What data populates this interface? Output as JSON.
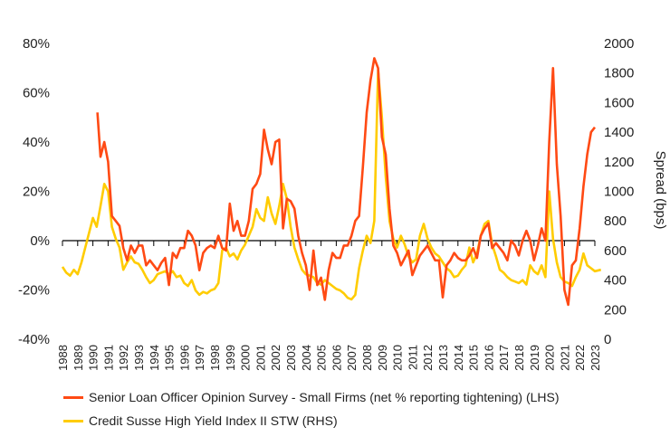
{
  "chart_data": {
    "type": "line",
    "xlabel": "",
    "ylabel_left": "",
    "ylabel_right": "Spread (bps)",
    "ylim_left": [
      -40,
      80
    ],
    "ylim_right": [
      0,
      2000
    ],
    "left_ticks": [
      "80%",
      "60%",
      "40%",
      "20%",
      "0%",
      "-20%",
      "-40%"
    ],
    "left_tick_values": [
      80,
      60,
      40,
      20,
      0,
      -20,
      -40
    ],
    "right_ticks": [
      "2000",
      "1800",
      "1600",
      "1400",
      "1200",
      "1000",
      "800",
      "600",
      "400",
      "200",
      "0"
    ],
    "right_tick_values": [
      2000,
      1800,
      1600,
      1400,
      1200,
      1000,
      800,
      600,
      400,
      200,
      0
    ],
    "x_ticks": [
      "1988",
      "1989",
      "1990",
      "1991",
      "1992",
      "1993",
      "1994",
      "1995",
      "1996",
      "1997",
      "1998",
      "1999",
      "2000",
      "2001",
      "2002",
      "2003",
      "2004",
      "2005",
      "2006",
      "2007",
      "2008",
      "2009",
      "2010",
      "2011",
      "2012",
      "2013",
      "2014",
      "2015",
      "2016",
      "2017",
      "2018",
      "2019",
      "2020",
      "2021",
      "2022",
      "2023"
    ],
    "grid": false,
    "legend_position": "bottom",
    "series": [
      {
        "name": "Senior Loan Officer Opinion Survey - Small Firms (net % reporting tightening) (LHS)",
        "axis": "left",
        "color": "#FF4A14",
        "x": [
          1990.3,
          1990.5,
          1990.75,
          1991,
          1991.25,
          1991.5,
          1991.75,
          1992,
          1992.25,
          1992.5,
          1992.75,
          1993,
          1993.25,
          1993.5,
          1993.75,
          1994,
          1994.25,
          1994.5,
          1994.75,
          1995,
          1995.25,
          1995.5,
          1995.75,
          1996,
          1996.25,
          1996.5,
          1996.75,
          1997,
          1997.25,
          1997.5,
          1997.75,
          1998,
          1998.25,
          1998.5,
          1998.75,
          1999,
          1999.25,
          1999.5,
          1999.75,
          2000,
          2000.25,
          2000.5,
          2000.75,
          2001,
          2001.25,
          2001.5,
          2001.75,
          2002,
          2002.25,
          2002.5,
          2002.75,
          2003,
          2003.25,
          2003.5,
          2003.75,
          2004,
          2004.25,
          2004.5,
          2004.75,
          2005,
          2005.25,
          2005.5,
          2005.75,
          2006,
          2006.25,
          2006.5,
          2006.75,
          2007,
          2007.25,
          2007.5,
          2007.75,
          2008,
          2008.25,
          2008.5,
          2008.75,
          2009,
          2009.25,
          2009.5,
          2009.75,
          2010,
          2010.25,
          2010.5,
          2010.75,
          2011,
          2011.25,
          2011.5,
          2011.75,
          2012,
          2012.25,
          2012.5,
          2012.75,
          2013,
          2013.25,
          2013.5,
          2013.75,
          2014,
          2014.25,
          2014.5,
          2014.75,
          2015,
          2015.25,
          2015.5,
          2015.75,
          2016,
          2016.25,
          2016.5,
          2016.75,
          2017,
          2017.25,
          2017.5,
          2017.75,
          2018,
          2018.25,
          2018.5,
          2018.75,
          2019,
          2019.25,
          2019.5,
          2019.75,
          2020,
          2020.25,
          2020.5,
          2020.75,
          2021,
          2021.25,
          2021.5,
          2021.75,
          2022,
          2022.25,
          2022.5,
          2022.75,
          2023
        ],
        "y": [
          52,
          34,
          40,
          32,
          10,
          8,
          6,
          -3,
          -8,
          -2,
          -5,
          -2,
          -2,
          -10,
          -8,
          -10,
          -12,
          -9,
          -7,
          -18,
          -5,
          -7,
          -3,
          -3,
          4,
          2,
          -2,
          -12,
          -5,
          -3,
          -2,
          -3,
          2,
          -3,
          -4,
          15,
          4,
          8,
          2,
          2,
          8,
          21,
          23,
          27,
          45,
          37,
          31,
          40,
          41,
          5,
          17,
          16,
          13,
          2,
          -5,
          -10,
          -20,
          -4,
          -18,
          -15,
          -24,
          -12,
          -5,
          -7,
          -7,
          -2,
          -2,
          2,
          8,
          10,
          30,
          52,
          65,
          74,
          70,
          42,
          35,
          13,
          -2,
          -5,
          -10,
          -7,
          -4,
          -14,
          -10,
          -6,
          -4,
          -2,
          -5,
          -8,
          -8,
          -23,
          -10,
          -8,
          -5,
          -7,
          -8,
          -8,
          -6,
          -3,
          -7,
          2,
          5,
          7,
          -3,
          -1,
          -3,
          -5,
          -8,
          0,
          -2,
          -6,
          0,
          4,
          0,
          -8,
          -2,
          5,
          0,
          40,
          70,
          31,
          10,
          -20,
          -26,
          -10,
          -8,
          5,
          22,
          35,
          44,
          46
        ]
      },
      {
        "name": "Credit Susse High Yield Index II STW (RHS)",
        "axis": "right",
        "color": "#FFCC00",
        "x": [
          1988,
          1988.25,
          1988.5,
          1988.75,
          1989,
          1989.25,
          1989.5,
          1989.75,
          1990,
          1990.25,
          1990.5,
          1990.75,
          1991,
          1991.25,
          1991.5,
          1991.75,
          1992,
          1992.25,
          1992.5,
          1992.75,
          1993,
          1993.25,
          1993.5,
          1993.75,
          1994,
          1994.25,
          1994.5,
          1994.75,
          1995,
          1995.25,
          1995.5,
          1995.75,
          1996,
          1996.25,
          1996.5,
          1996.75,
          1997,
          1997.25,
          1997.5,
          1997.75,
          1998,
          1998.25,
          1998.5,
          1998.75,
          1999,
          1999.25,
          1999.5,
          1999.75,
          2000,
          2000.25,
          2000.5,
          2000.75,
          2001,
          2001.25,
          2001.5,
          2001.75,
          2002,
          2002.25,
          2002.5,
          2002.75,
          2003,
          2003.25,
          2003.5,
          2003.75,
          2004,
          2004.25,
          2004.5,
          2004.75,
          2005,
          2005.25,
          2005.5,
          2005.75,
          2006,
          2006.25,
          2006.5,
          2006.75,
          2007,
          2007.25,
          2007.5,
          2007.75,
          2008,
          2008.25,
          2008.5,
          2008.75,
          2009,
          2009.25,
          2009.5,
          2009.75,
          2010,
          2010.25,
          2010.5,
          2010.75,
          2011,
          2011.25,
          2011.5,
          2011.75,
          2012,
          2012.25,
          2012.5,
          2012.75,
          2013,
          2013.25,
          2013.5,
          2013.75,
          2014,
          2014.25,
          2014.5,
          2014.75,
          2015,
          2015.25,
          2015.5,
          2015.75,
          2016,
          2016.25,
          2016.5,
          2016.75,
          2017,
          2017.25,
          2017.5,
          2017.75,
          2018,
          2018.25,
          2018.5,
          2018.75,
          2019,
          2019.25,
          2019.5,
          2019.75,
          2020,
          2020.25,
          2020.5,
          2020.75,
          2021,
          2021.25,
          2021.5,
          2021.75,
          2022,
          2022.25,
          2022.5,
          2022.75,
          2023,
          2023.4
        ],
        "y": [
          490,
          450,
          430,
          470,
          440,
          520,
          620,
          720,
          820,
          760,
          900,
          1050,
          1000,
          760,
          680,
          620,
          470,
          520,
          560,
          520,
          510,
          470,
          420,
          380,
          400,
          440,
          450,
          460,
          440,
          460,
          420,
          430,
          380,
          360,
          400,
          330,
          300,
          320,
          310,
          330,
          340,
          380,
          600,
          620,
          560,
          580,
          540,
          600,
          640,
          700,
          760,
          880,
          820,
          800,
          960,
          850,
          780,
          900,
          1050,
          950,
          760,
          620,
          540,
          470,
          440,
          430,
          420,
          380,
          370,
          400,
          380,
          360,
          340,
          330,
          310,
          280,
          270,
          300,
          480,
          600,
          700,
          650,
          800,
          1820,
          1500,
          1100,
          800,
          680,
          620,
          700,
          640,
          560,
          520,
          540,
          700,
          780,
          680,
          620,
          580,
          560,
          520,
          480,
          460,
          420,
          430,
          470,
          500,
          620,
          520,
          580,
          700,
          780,
          800,
          640,
          560,
          470,
          450,
          420,
          400,
          390,
          380,
          400,
          370,
          500,
          460,
          440,
          500,
          420,
          1000,
          680,
          520,
          420,
          390,
          380,
          360,
          420,
          470,
          580,
          500,
          480,
          460,
          470
        ]
      }
    ]
  }
}
